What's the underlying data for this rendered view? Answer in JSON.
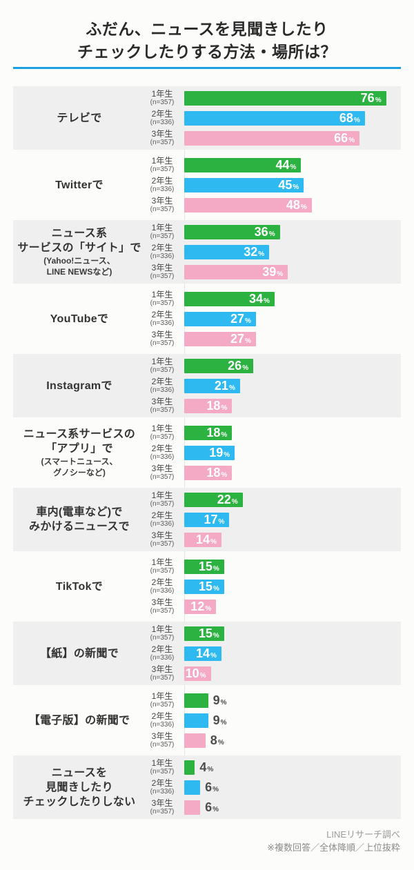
{
  "title": {
    "line1": "ふだん、ニュースを見聞きしたり",
    "line2": "チェックしたりする方法・場所は？"
  },
  "footer": {
    "source": "LINEリサーチ調べ",
    "note": "※複数回答／全体降順／上位抜粋"
  },
  "colors": {
    "accent_rule": "#199fe0",
    "grade1_green": "#2cb240",
    "grade2_blue": "#2eb9f0",
    "grade3_pink": "#f4a9c5",
    "block_alt_gray": "#efefef",
    "value_label_inside": "#ffffff",
    "value_label_outside": "#4d4d4d"
  },
  "chart_data": {
    "type": "bar",
    "orientation": "horizontal",
    "title": "ふだん、ニュースを見聞きしたりチェックしたりする方法・場所は？",
    "unit": "%",
    "xlim": [
      0,
      100
    ],
    "grid": false,
    "legend_position": "per-bar-left",
    "value_labels": "end-of-bar",
    "value_label_inside_min": 10,
    "series": [
      {
        "name": "1年生",
        "n_label": "(n=357)",
        "color": "#2cb240"
      },
      {
        "name": "2年生",
        "n_label": "(n=336)",
        "color": "#2eb9f0"
      },
      {
        "name": "3年生",
        "n_label": "(n=357)",
        "color": "#f4a9c5"
      }
    ],
    "categories": [
      {
        "label_lines": [
          "テレビで"
        ],
        "note_lines": [],
        "values": [
          76,
          68,
          66
        ]
      },
      {
        "label_lines": [
          "Twitterで"
        ],
        "note_lines": [],
        "values": [
          44,
          45,
          48
        ]
      },
      {
        "label_lines": [
          "ニュース系",
          "サービスの「サイト」で"
        ],
        "note_lines": [
          "(Yahoo!ニュース、",
          "LINE NEWSなど)"
        ],
        "values": [
          36,
          32,
          39
        ]
      },
      {
        "label_lines": [
          "YouTubeで"
        ],
        "note_lines": [],
        "values": [
          34,
          27,
          27
        ]
      },
      {
        "label_lines": [
          "Instagramで"
        ],
        "note_lines": [],
        "values": [
          26,
          21,
          18
        ]
      },
      {
        "label_lines": [
          "ニュース系サービスの",
          "「アプリ」で"
        ],
        "note_lines": [
          "(スマートニュース、",
          "グノシーなど)"
        ],
        "values": [
          18,
          19,
          18
        ]
      },
      {
        "label_lines": [
          "車内(電車など)で",
          "みかけるニュースで"
        ],
        "note_lines": [],
        "values": [
          22,
          17,
          14
        ]
      },
      {
        "label_lines": [
          "TikTokで"
        ],
        "note_lines": [],
        "values": [
          15,
          15,
          12
        ]
      },
      {
        "label_lines": [
          "【紙】の新聞で"
        ],
        "note_lines": [],
        "values": [
          15,
          14,
          10
        ]
      },
      {
        "label_lines": [
          "【電子版】の新聞で"
        ],
        "note_lines": [],
        "values": [
          9,
          9,
          8
        ]
      },
      {
        "label_lines": [
          "ニュースを",
          "見聞きしたり",
          "チェックしたりしない"
        ],
        "note_lines": [],
        "values": [
          4,
          6,
          6
        ]
      }
    ]
  }
}
